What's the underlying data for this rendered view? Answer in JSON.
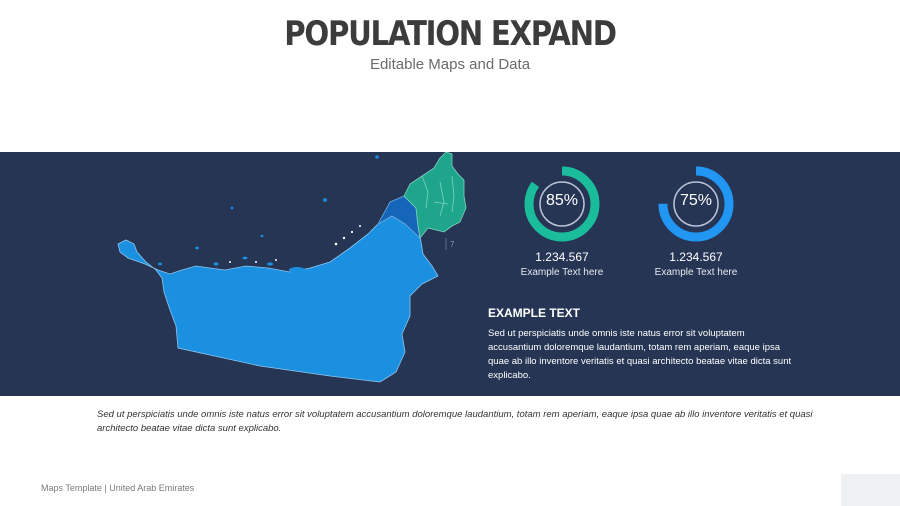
{
  "header": {
    "title": "POPULATION EXPAND",
    "subtitle": "Editable Maps and Data"
  },
  "colors": {
    "band": "#253553",
    "abu_dhabi": "#1b8fe0",
    "dubai": "#1565b8",
    "northern_emirates": "#1fa58b",
    "gauge_green": "#1abc9c",
    "gauge_blue": "#2196f3"
  },
  "map": {
    "label": "7"
  },
  "gauges": [
    {
      "percent": 85,
      "percent_label": "85%",
      "value": "1.234.567",
      "caption": "Example Text here",
      "color": "#1abc9c"
    },
    {
      "percent": 75,
      "percent_label": "75%",
      "value": "1.234.567",
      "caption": "Example Text here",
      "color": "#2196f3"
    }
  ],
  "example": {
    "title": "EXAMPLE TEXT",
    "body": "Sed ut perspiciatis unde omnis iste natus error sit voluptatem accusantium doloremque laudantium, totam rem aperiam, eaque ipsa quae ab illo inventore veritatis et quasi architecto beatae vitae dicta sunt explicabo."
  },
  "note": "Sed ut perspiciatis unde omnis iste natus error sit voluptatem accusantium doloremque laudantium, totam rem aperiam, eaque ipsa quae ab illo inventore veritatis et quasi architecto beatae vitae dicta sunt explicabo.",
  "footer": "Maps Template | United Arab Emirates"
}
